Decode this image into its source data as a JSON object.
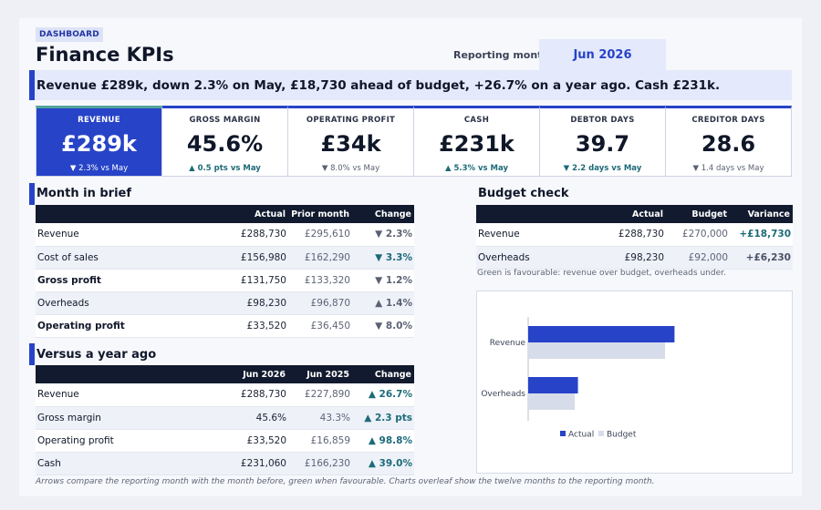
{
  "header": {
    "badge": "DASHBOARD",
    "title": "Finance KPIs",
    "reporting_month_label": "Reporting month",
    "reporting_month_value": "Jun 2026"
  },
  "headline": "Revenue £289k, down 2.3% on May, £18,730 ahead of budget, +26.7% on a year ago. Cash £231k.",
  "kpis": [
    {
      "label": "REVENUE",
      "value": "£289k",
      "delta": "▼ 2.3% vs May",
      "tone": "highlight"
    },
    {
      "label": "GROSS MARGIN",
      "value": "45.6%",
      "delta": "▲ 0.5 pts vs May",
      "tone": "good"
    },
    {
      "label": "OPERATING PROFIT",
      "value": "£34k",
      "delta": "▼ 8.0% vs May",
      "tone": "bad"
    },
    {
      "label": "CASH",
      "value": "£231k",
      "delta": "▲ 5.3% vs May",
      "tone": "good"
    },
    {
      "label": "DEBTOR DAYS",
      "value": "39.7",
      "delta": "▼ 2.2 days vs May",
      "tone": "good"
    },
    {
      "label": "CREDITOR DAYS",
      "value": "28.6",
      "delta": "▼ 1.4 days vs May",
      "tone": "bad"
    }
  ],
  "month_in_brief": {
    "title": "Month in brief",
    "columns": [
      "",
      "Actual",
      "Prior month",
      "Change"
    ],
    "rows": [
      {
        "name": "Revenue",
        "actual": "£288,730",
        "prior": "£295,610",
        "change": "▼ 2.3%",
        "tone": "bad",
        "bold": false
      },
      {
        "name": "Cost of sales",
        "actual": "£156,980",
        "prior": "£162,290",
        "change": "▼ 3.3%",
        "tone": "good",
        "bold": false
      },
      {
        "name": "Gross profit",
        "actual": "£131,750",
        "prior": "£133,320",
        "change": "▼ 1.2%",
        "tone": "bad",
        "bold": true
      },
      {
        "name": "Overheads",
        "actual": "£98,230",
        "prior": "£96,870",
        "change": "▲ 1.4%",
        "tone": "bad",
        "bold": false
      },
      {
        "name": "Operating profit",
        "actual": "£33,520",
        "prior": "£36,450",
        "change": "▼ 8.0%",
        "tone": "bad",
        "bold": true
      }
    ]
  },
  "year_ago": {
    "title": "Versus a year ago",
    "columns": [
      "",
      "Jun 2026",
      "Jun 2025",
      "Change"
    ],
    "rows": [
      {
        "name": "Revenue",
        "current": "£288,730",
        "previous": "£227,890",
        "change": "▲ 26.7%"
      },
      {
        "name": "Gross margin",
        "current": "45.6%",
        "previous": "43.3%",
        "change": "▲ 2.3 pts"
      },
      {
        "name": "Operating profit",
        "current": "£33,520",
        "previous": "£16,859",
        "change": "▲ 98.8%"
      },
      {
        "name": "Cash",
        "current": "£231,060",
        "previous": "£166,230",
        "change": "▲ 39.0%"
      }
    ]
  },
  "budget_check": {
    "title": "Budget check",
    "columns": [
      "",
      "Actual",
      "Budget",
      "Variance"
    ],
    "rows": [
      {
        "name": "Revenue",
        "actual": "£288,730",
        "budget": "£270,000",
        "variance": "+£18,730",
        "tone": "good"
      },
      {
        "name": "Overheads",
        "actual": "£98,230",
        "budget": "£92,000",
        "variance": "+£6,230",
        "tone": "neutral"
      }
    ],
    "note": "Green is favourable: revenue over budget, overheads under."
  },
  "footer": "Arrows compare the reporting month with the month before, green when favourable. Charts overleaf show the twelve months to the reporting month.",
  "chart_data": {
    "type": "bar",
    "orientation": "horizontal",
    "categories": [
      "Revenue",
      "Overheads"
    ],
    "series": [
      {
        "name": "Actual",
        "values": [
          288730,
          98230
        ],
        "color": "#2743c8"
      },
      {
        "name": "Budget",
        "values": [
          270000,
          92000
        ],
        "color": "#d7dcea"
      }
    ],
    "xlim": [
      0,
      450000
    ],
    "legend": "bottom",
    "grid": false
  }
}
